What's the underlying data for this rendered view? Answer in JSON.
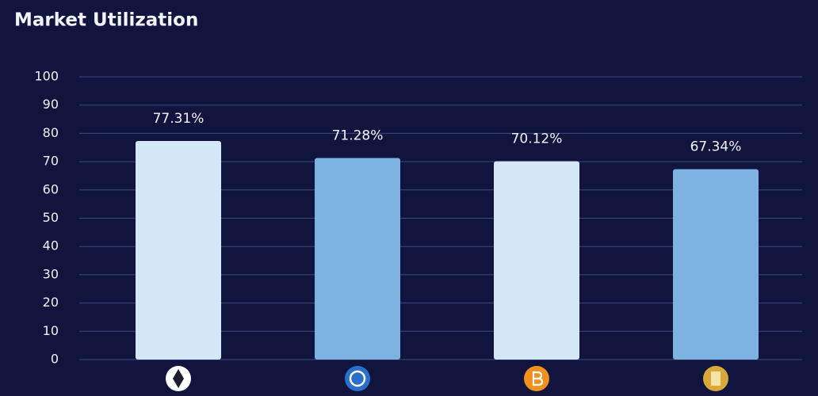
{
  "chart_data": {
    "type": "bar",
    "title": "Market Utilization",
    "categories": [
      null,
      null,
      null,
      null
    ],
    "values": [
      77.31,
      71.28,
      70.12,
      67.34
    ],
    "value_labels": [
      "77.31%",
      "71.28%",
      "70.12%",
      "67.34%"
    ],
    "colors": [
      "#d4e7f6",
      "#7cb3e0",
      "#d4e7f6",
      "#7cb3e0"
    ],
    "ylim": [
      0,
      100
    ],
    "yticks": [
      0,
      10,
      20,
      30,
      40,
      50,
      60,
      70,
      80,
      90,
      100
    ],
    "grid": true
  }
}
